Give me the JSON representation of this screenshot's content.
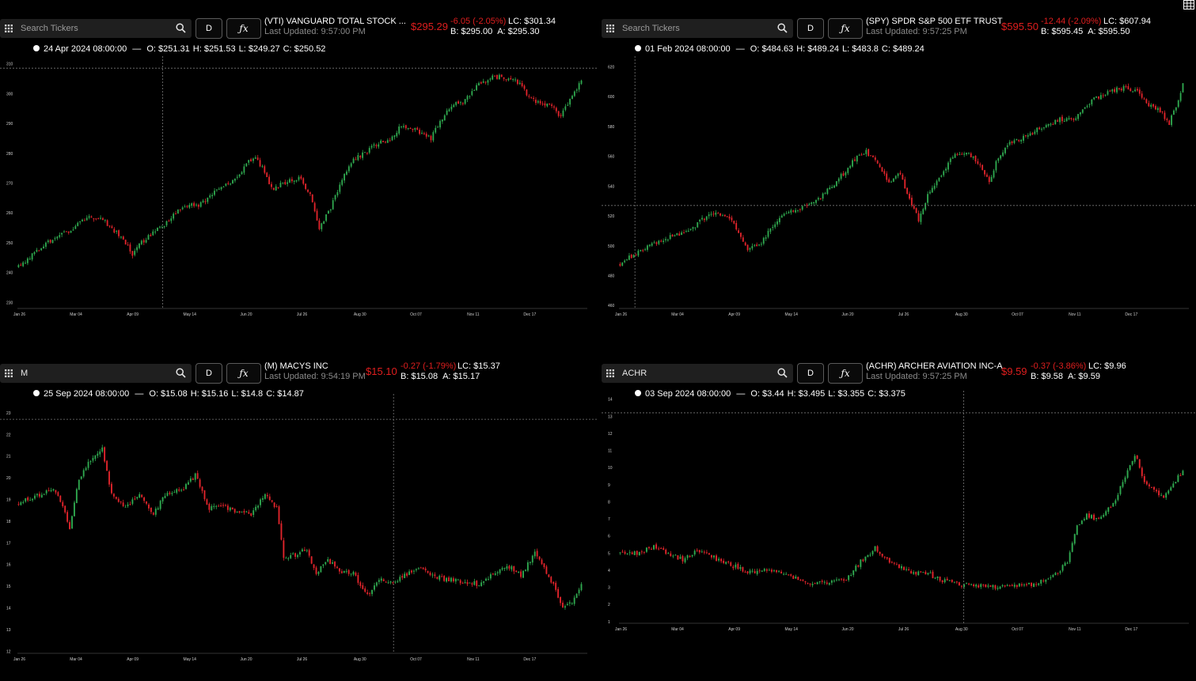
{
  "panes": [
    {
      "search": {
        "placeholder": "Search Tickers",
        "value": ""
      },
      "period": "D",
      "fx_label": "ƒx",
      "quote": {
        "name": "(VTI) VANGUARD TOTAL STOCK ...",
        "updated": "Last Updated: 9:57:00 PM",
        "price": "$295.29",
        "change": "-6.05 (-2.05%)",
        "lc": "LC: $301.34",
        "bid": "B: $295.00",
        "ask": "A: $295.30"
      },
      "ohlc": {
        "date": "24 Apr 2024 08:00:00",
        "sep": "—",
        "o": "O: $251.31",
        "h": "H: $251.53",
        "l": "L: $249.27",
        "c": "C: $250.52"
      },
      "chart_data": {
        "type": "candlestick",
        "ylim": [
          228,
          312
        ],
        "yticks": [
          "230",
          "240",
          "250",
          "260",
          "270",
          "280",
          "290",
          "300",
          "310"
        ],
        "xticks": [
          "Jan 26",
          "Mar 04",
          "Apr 09",
          "May 14",
          "Jun 20",
          "Jul 26",
          "Aug 30",
          "Oct 07",
          "Nov 11",
          "Dec 17"
        ],
        "crosshair": {
          "x_frac": 0.255,
          "y": 308.5
        },
        "anchors": [
          [
            0,
            242
          ],
          [
            12,
            250
          ],
          [
            22,
            254
          ],
          [
            32,
            259
          ],
          [
            38,
            257
          ],
          [
            45,
            252
          ],
          [
            50,
            246
          ],
          [
            54,
            250
          ],
          [
            60,
            254
          ],
          [
            65,
            257
          ],
          [
            72,
            262
          ],
          [
            80,
            263
          ],
          [
            86,
            267
          ],
          [
            93,
            270
          ],
          [
            99,
            275
          ],
          [
            103,
            279
          ],
          [
            108,
            274
          ],
          [
            111,
            268
          ],
          [
            116,
            270
          ],
          [
            123,
            272
          ],
          [
            128,
            266
          ],
          [
            132,
            255
          ],
          [
            136,
            260
          ],
          [
            142,
            271
          ],
          [
            147,
            278
          ],
          [
            152,
            280
          ],
          [
            157,
            283
          ],
          [
            163,
            285
          ],
          [
            168,
            289
          ],
          [
            173,
            288
          ],
          [
            177,
            287
          ],
          [
            181,
            285
          ],
          [
            186,
            292
          ],
          [
            190,
            296
          ],
          [
            195,
            297
          ],
          [
            202,
            303
          ],
          [
            208,
            306
          ],
          [
            214,
            305
          ],
          [
            219,
            304
          ],
          [
            225,
            298
          ],
          [
            230,
            297
          ],
          [
            234,
            296
          ],
          [
            238,
            292
          ],
          [
            243,
            300
          ],
          [
            247,
            304
          ]
        ]
      }
    },
    {
      "search": {
        "placeholder": "Search Tickers",
        "value": ""
      },
      "period": "D",
      "fx_label": "ƒx",
      "quote": {
        "name": "(SPY) SPDR S&P 500 ETF TRUST",
        "updated": "Last Updated: 9:57:25 PM",
        "price": "$595.50",
        "change": "-12.44 (-2.09%)",
        "lc": "LC: $607.94",
        "bid": "B: $595.45",
        "ask": "A: $595.50"
      },
      "ohlc": {
        "date": "01 Feb 2024 08:00:00",
        "sep": "—",
        "o": "O: $484.63",
        "h": "H: $489.24",
        "l": "L: $483.8",
        "c": "C: $489.24"
      },
      "chart_data": {
        "type": "candlestick",
        "ylim": [
          458,
          626
        ],
        "yticks": [
          "460",
          "480",
          "500",
          "520",
          "540",
          "560",
          "580",
          "600",
          "620"
        ],
        "xticks": [
          "Jan 26",
          "Mar 04",
          "Apr 09",
          "May 14",
          "Jun 20",
          "Jul 26",
          "Aug 30",
          "Oct 07",
          "Nov 11",
          "Dec 17"
        ],
        "crosshair": {
          "x_frac": 0.028,
          "y": 527
        },
        "anchors": [
          [
            0,
            488
          ],
          [
            12,
            500
          ],
          [
            22,
            506
          ],
          [
            32,
            512
          ],
          [
            38,
            520
          ],
          [
            45,
            522
          ],
          [
            50,
            515
          ],
          [
            56,
            498
          ],
          [
            62,
            502
          ],
          [
            67,
            513
          ],
          [
            72,
            521
          ],
          [
            80,
            525
          ],
          [
            86,
            530
          ],
          [
            93,
            540
          ],
          [
            99,
            550
          ],
          [
            103,
            558
          ],
          [
            108,
            563
          ],
          [
            113,
            555
          ],
          [
            118,
            542
          ],
          [
            123,
            548
          ],
          [
            127,
            532
          ],
          [
            131,
            518
          ],
          [
            136,
            537
          ],
          [
            141,
            548
          ],
          [
            146,
            560
          ],
          [
            152,
            562
          ],
          [
            157,
            556
          ],
          [
            162,
            543
          ],
          [
            166,
            560
          ],
          [
            171,
            569
          ],
          [
            176,
            572
          ],
          [
            182,
            577
          ],
          [
            187,
            580
          ],
          [
            193,
            585
          ],
          [
            199,
            584
          ],
          [
            205,
            595
          ],
          [
            211,
            601
          ],
          [
            215,
            603
          ],
          [
            221,
            606
          ],
          [
            227,
            604
          ],
          [
            232,
            594
          ],
          [
            237,
            590
          ],
          [
            241,
            582
          ],
          [
            244,
            594
          ],
          [
            247,
            608
          ]
        ]
      }
    },
    {
      "search": {
        "placeholder": "Search Tickers",
        "value": "M"
      },
      "period": "D",
      "fx_label": "ƒx",
      "quote": {
        "name": "(M) MACYS INC",
        "updated": "Last Updated: 9:54:19 PM",
        "price": "$15.10",
        "change": "-0.27 (-1.79%)",
        "lc": "LC: $15.37",
        "bid": "B: $15.08",
        "ask": "A: $15.17"
      },
      "ohlc": {
        "date": "25 Sep 2024 08:00:00",
        "sep": "—",
        "o": "O: $15.08",
        "h": "H: $15.16",
        "l": "L: $14.8",
        "c": "C: $14.87"
      },
      "chart_data": {
        "type": "candlestick",
        "ylim": [
          11.9,
          23.8
        ],
        "yticks": [
          "12",
          "13",
          "14",
          "15",
          "16",
          "17",
          "18",
          "19",
          "20",
          "21",
          "22",
          "23"
        ],
        "xticks": [
          "Jan 26",
          "Mar 04",
          "Apr 09",
          "May 14",
          "Jun 20",
          "Jul 26",
          "Aug 30",
          "Oct 07",
          "Nov 11",
          "Dec 17"
        ],
        "crosshair": {
          "x_frac": 0.66,
          "y": 22.7
        },
        "anchors": [
          [
            0,
            18.8
          ],
          [
            8,
            19.2
          ],
          [
            14,
            19.5
          ],
          [
            18,
            19.0
          ],
          [
            22,
            17.6
          ],
          [
            26,
            20.0
          ],
          [
            32,
            21.0
          ],
          [
            36,
            21.3
          ],
          [
            40,
            19.2
          ],
          [
            46,
            18.6
          ],
          [
            52,
            19.2
          ],
          [
            58,
            18.4
          ],
          [
            64,
            19.3
          ],
          [
            70,
            19.4
          ],
          [
            76,
            20.1
          ],
          [
            82,
            18.6
          ],
          [
            88,
            18.7
          ],
          [
            94,
            18.4
          ],
          [
            100,
            18.3
          ],
          [
            106,
            19.2
          ],
          [
            111,
            18.6
          ],
          [
            114,
            16.4
          ],
          [
            118,
            16.4
          ],
          [
            124,
            16.7
          ],
          [
            128,
            15.6
          ],
          [
            133,
            16.2
          ],
          [
            138,
            15.7
          ],
          [
            144,
            15.6
          ],
          [
            150,
            14.6
          ],
          [
            156,
            15.3
          ],
          [
            162,
            15.2
          ],
          [
            168,
            15.6
          ],
          [
            174,
            15.8
          ],
          [
            180,
            15.4
          ],
          [
            186,
            15.3
          ],
          [
            192,
            15.2
          ],
          [
            198,
            15.1
          ],
          [
            204,
            15.6
          ],
          [
            210,
            16.0
          ],
          [
            216,
            15.5
          ],
          [
            222,
            16.5
          ],
          [
            226,
            15.9
          ],
          [
            230,
            15.0
          ],
          [
            234,
            14.1
          ],
          [
            238,
            14.3
          ],
          [
            242,
            15.1
          ]
        ]
      }
    },
    {
      "search": {
        "placeholder": "Search Tickers",
        "value": "ACHR"
      },
      "period": "D",
      "fx_label": "ƒx",
      "quote": {
        "name": "(ACHR) ARCHER AVIATION INC-A",
        "updated": "Last Updated: 9:57:25 PM",
        "price": "$9.59",
        "change": "-0.37 (-3.86%)",
        "lc": "LC: $9.96",
        "bid": "B: $9.58",
        "ask": "A: $9.59"
      },
      "ohlc": {
        "date": "03 Sep 2024 08:00:00",
        "sep": "—",
        "o": "O: $3.44",
        "h": "H: $3.495",
        "l": "L: $3.355",
        "c": "C: $3.375"
      },
      "chart_data": {
        "type": "candlestick",
        "ylim": [
          0.9,
          14.4
        ],
        "yticks": [
          "1",
          "2",
          "3",
          "4",
          "5",
          "6",
          "7",
          "8",
          "9",
          "10",
          "11",
          "12",
          "13",
          "14"
        ],
        "xticks": [
          "Jan 26",
          "Mar 04",
          "Apr 09",
          "May 14",
          "Jun 20",
          "Jul 26",
          "Aug 30",
          "Oct 07",
          "Nov 11",
          "Dec 17"
        ],
        "crosshair": {
          "x_frac": 0.605,
          "y": 13.2
        },
        "anchors": [
          [
            0,
            5.0
          ],
          [
            8,
            5.0
          ],
          [
            14,
            5.4
          ],
          [
            20,
            5.0
          ],
          [
            26,
            4.6
          ],
          [
            32,
            5.1
          ],
          [
            38,
            4.8
          ],
          [
            46,
            4.3
          ],
          [
            54,
            3.9
          ],
          [
            62,
            4.0
          ],
          [
            70,
            3.7
          ],
          [
            78,
            3.3
          ],
          [
            86,
            3.2
          ],
          [
            94,
            3.5
          ],
          [
            100,
            4.5
          ],
          [
            106,
            5.3
          ],
          [
            110,
            4.7
          ],
          [
            116,
            4.2
          ],
          [
            122,
            3.8
          ],
          [
            128,
            3.8
          ],
          [
            134,
            3.4
          ],
          [
            140,
            3.2
          ],
          [
            148,
            3.1
          ],
          [
            156,
            3.0
          ],
          [
            164,
            3.1
          ],
          [
            172,
            3.2
          ],
          [
            180,
            3.6
          ],
          [
            186,
            4.5
          ],
          [
            190,
            6.5
          ],
          [
            194,
            7.2
          ],
          [
            198,
            7.0
          ],
          [
            202,
            7.4
          ],
          [
            206,
            8.2
          ],
          [
            210,
            9.5
          ],
          [
            214,
            10.8
          ],
          [
            218,
            9.2
          ],
          [
            222,
            8.6
          ],
          [
            226,
            8.3
          ],
          [
            230,
            9.1
          ],
          [
            234,
            9.8
          ]
        ]
      }
    }
  ]
}
